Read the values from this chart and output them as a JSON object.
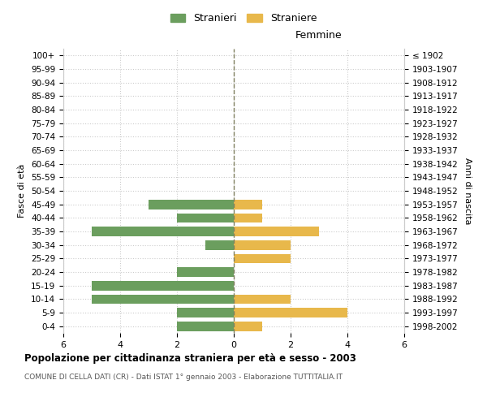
{
  "age_groups": [
    "0-4",
    "5-9",
    "10-14",
    "15-19",
    "20-24",
    "25-29",
    "30-34",
    "35-39",
    "40-44",
    "45-49",
    "50-54",
    "55-59",
    "60-64",
    "65-69",
    "70-74",
    "75-79",
    "80-84",
    "85-89",
    "90-94",
    "95-99",
    "100+"
  ],
  "year_labels": [
    "1998-2002",
    "1993-1997",
    "1988-1992",
    "1983-1987",
    "1978-1982",
    "1973-1977",
    "1968-1972",
    "1963-1967",
    "1958-1962",
    "1953-1957",
    "1948-1952",
    "1943-1947",
    "1938-1942",
    "1933-1937",
    "1928-1932",
    "1923-1927",
    "1918-1922",
    "1913-1917",
    "1908-1912",
    "1903-1907",
    "≤ 1902"
  ],
  "males": [
    2,
    2,
    5,
    5,
    2,
    0,
    1,
    5,
    2,
    3,
    0,
    0,
    0,
    0,
    0,
    0,
    0,
    0,
    0,
    0,
    0
  ],
  "females": [
    1,
    4,
    2,
    0,
    0,
    2,
    2,
    3,
    1,
    1,
    0,
    0,
    0,
    0,
    0,
    0,
    0,
    0,
    0,
    0,
    0
  ],
  "male_color": "#6b9e5e",
  "female_color": "#e8b84b",
  "grid_color": "#cccccc",
  "center_line_color": "#808060",
  "bg_color": "#ffffff",
  "title": "Popolazione per cittadinanza straniera per età e sesso - 2003",
  "subtitle": "COMUNE DI CELLA DATI (CR) - Dati ISTAT 1° gennaio 2003 - Elaborazione TUTTITALIA.IT",
  "legend_stranieri": "Stranieri",
  "legend_straniere": "Straniere",
  "xlabel_right": "Femmine",
  "ylabel_left": "Fasce di età",
  "ylabel_right": "Anni di nascita",
  "xlim": 6
}
